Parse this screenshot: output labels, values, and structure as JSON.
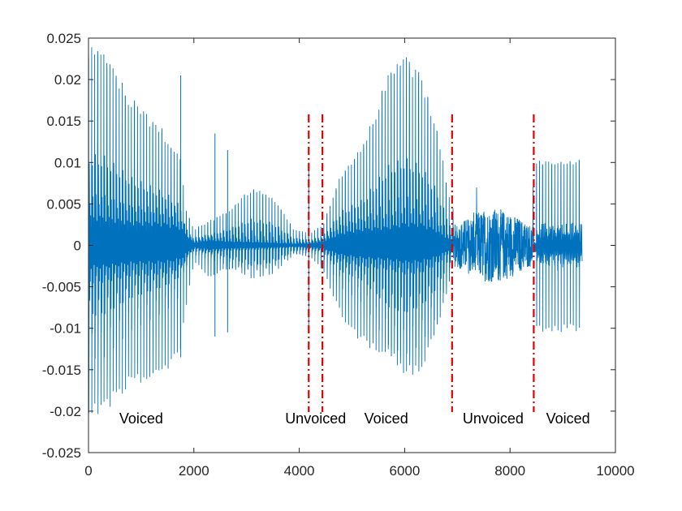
{
  "chart_data": {
    "type": "line",
    "title": "",
    "xlabel": "",
    "ylabel": "",
    "xlim": [
      0,
      10000
    ],
    "ylim": [
      -0.025,
      0.025
    ],
    "x_ticks": [
      0,
      2000,
      4000,
      6000,
      8000,
      10000
    ],
    "x_tick_labels": [
      "0",
      "2000",
      "4000",
      "6000",
      "8000",
      "10000"
    ],
    "y_ticks": [
      -0.025,
      -0.02,
      -0.015,
      -0.01,
      -0.005,
      0,
      0.005,
      0.01,
      0.015,
      0.02,
      0.025
    ],
    "y_tick_labels": [
      "-0.025",
      "-0.02",
      "-0.015",
      "-0.01",
      "-0.005",
      "0",
      "0.005",
      "0.01",
      "0.015",
      "0.02",
      "0.025"
    ],
    "grid": false,
    "series": [
      {
        "color": "#0072BD",
        "sample_count": 9370,
        "envelope": [
          [
            0,
            0.024,
            -0.021
          ],
          [
            300,
            0.0235,
            -0.0205
          ],
          [
            800,
            0.018,
            -0.017
          ],
          [
            1200,
            0.0155,
            -0.0165
          ],
          [
            1500,
            0.0135,
            -0.0155
          ],
          [
            1750,
            0.0105,
            -0.013
          ],
          [
            1850,
            0.0045,
            -0.008
          ],
          [
            2000,
            0.002,
            -0.002
          ],
          [
            2300,
            0.003,
            -0.004
          ],
          [
            2600,
            0.004,
            -0.003
          ],
          [
            3100,
            0.007,
            -0.0025
          ],
          [
            3500,
            0.006,
            -0.002
          ],
          [
            3900,
            0.002,
            -0.001
          ],
          [
            4200,
            0.0015,
            -0.0015
          ],
          [
            4450,
            0.0025,
            -0.003
          ],
          [
            4800,
            0.009,
            -0.009
          ],
          [
            5200,
            0.012,
            -0.012
          ],
          [
            5700,
            0.021,
            -0.0135
          ],
          [
            6000,
            0.023,
            -0.016
          ],
          [
            6300,
            0.021,
            -0.0155
          ],
          [
            6600,
            0.015,
            -0.011
          ],
          [
            6850,
            0.006,
            -0.0045
          ]
        ],
        "spikes": [
          [
            1750,
            0.0205,
            -0.0135
          ],
          [
            2400,
            0.0135,
            -0.011
          ],
          [
            2640,
            0.0115,
            -0.0105
          ],
          [
            4180,
            0.01,
            -0.0105
          ]
        ],
        "noise_segment": {
          "x_start": 6900,
          "x_end": 8450,
          "amplitude": 0.0045,
          "peak_amplitude": 0.0075
        },
        "tail_segment": {
          "x_start": 8500,
          "x_end": 9370,
          "amplitude": 0.0105
        }
      }
    ],
    "boundaries": [
      4180,
      4440,
      6900,
      8450
    ],
    "segments": [
      {
        "label": "Voiced",
        "x": 1000
      },
      {
        "label": "Unvoiced",
        "x": 4310
      },
      {
        "label": "Voiced",
        "x": 5650
      },
      {
        "label": "Unvoiced",
        "x": 7680
      },
      {
        "label": "Voiced",
        "x": 9100
      }
    ],
    "boundary_color": "#e00000"
  }
}
